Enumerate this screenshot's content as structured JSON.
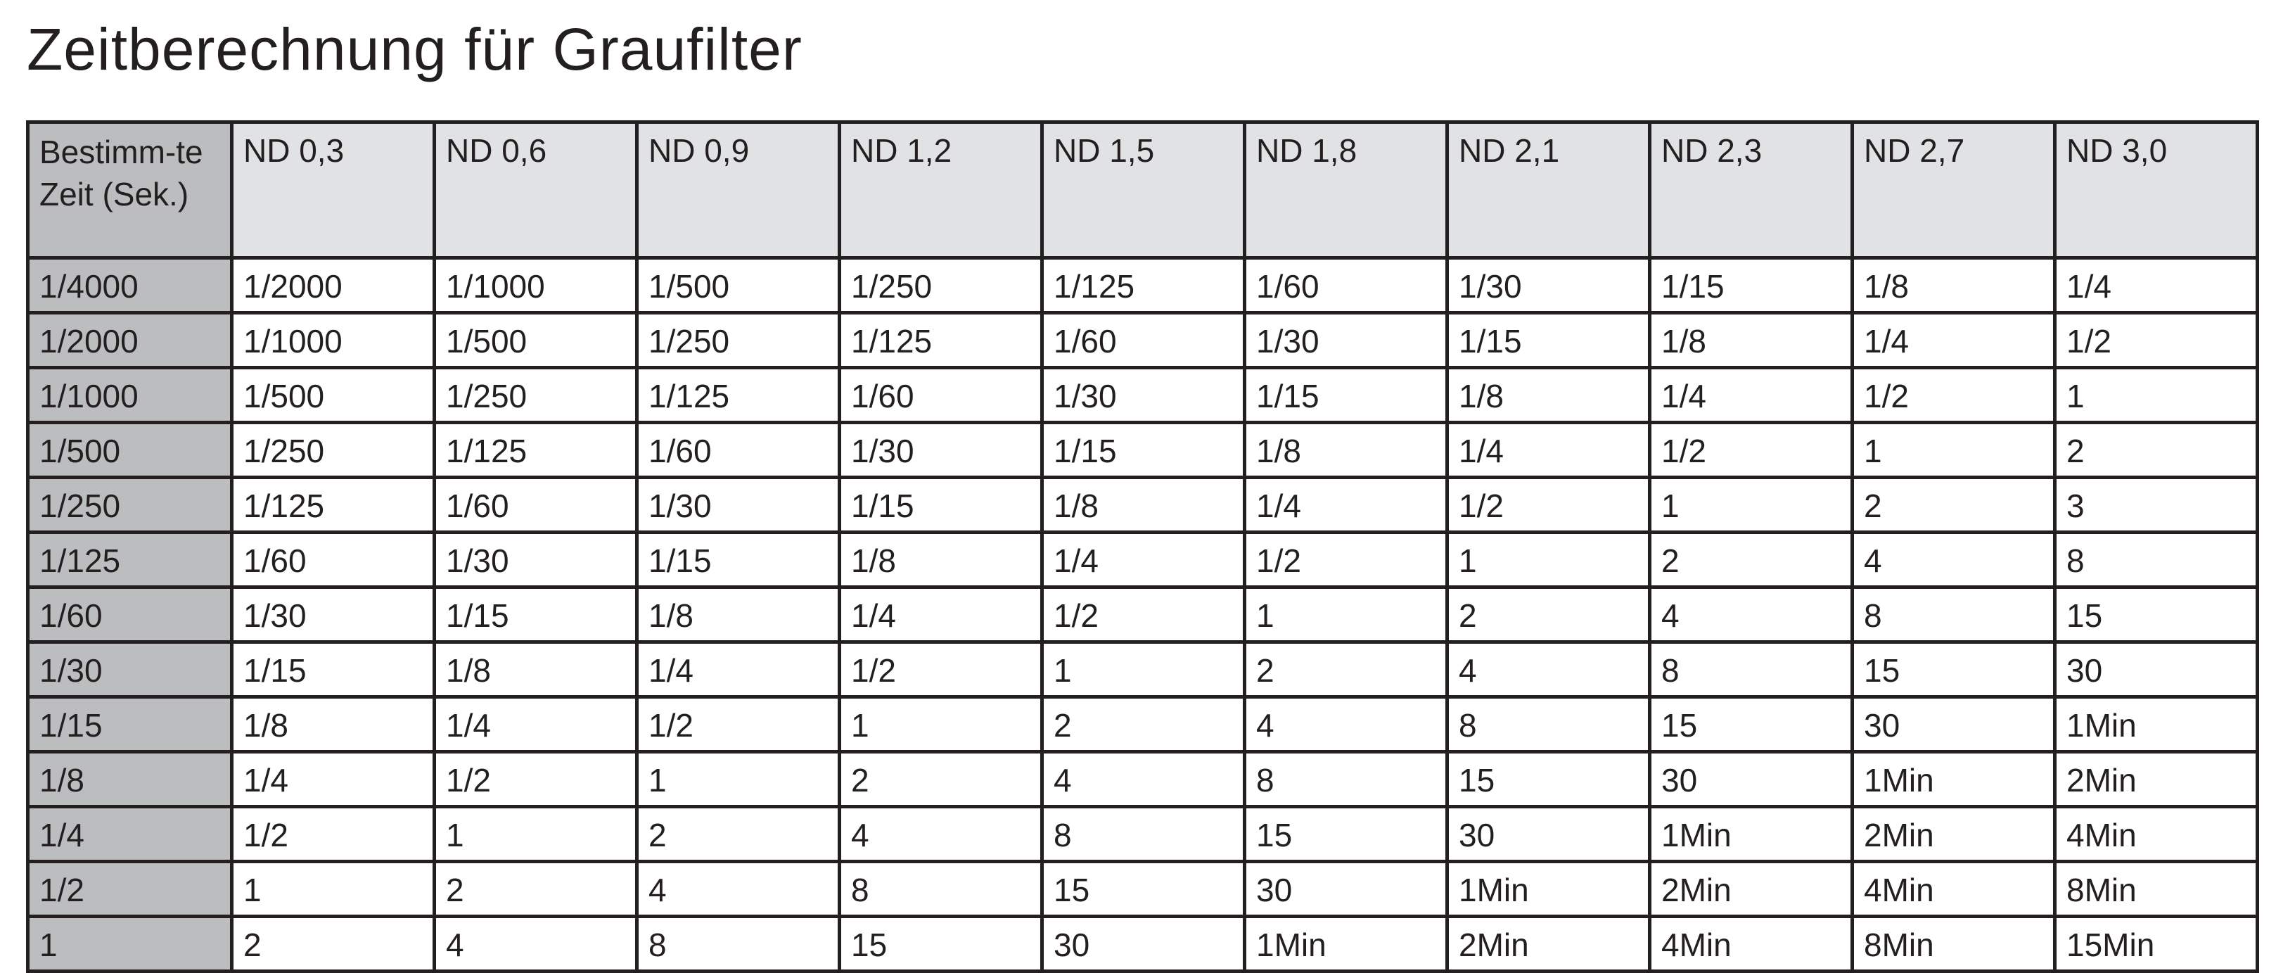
{
  "title": "Zeitberechnung für Graufilter",
  "table": {
    "corner_header": "Bestimm-te Zeit (Sek.)",
    "columns": [
      "ND 0,3",
      "ND 0,6",
      "ND 0,9",
      "ND 1,2",
      "ND 1,5",
      "ND 1,8",
      "ND 2,1",
      "ND 2,3",
      "ND 2,7",
      "ND 3,0"
    ],
    "rows": [
      {
        "time": "1/4000",
        "values": [
          "1/2000",
          "1/1000",
          "1/500",
          "1/250",
          "1/125",
          "1/60",
          "1/30",
          "1/15",
          "1/8",
          "1/4"
        ]
      },
      {
        "time": "1/2000",
        "values": [
          "1/1000",
          "1/500",
          "1/250",
          "1/125",
          "1/60",
          "1/30",
          "1/15",
          "1/8",
          "1/4",
          "1/2"
        ]
      },
      {
        "time": "1/1000",
        "values": [
          "1/500",
          "1/250",
          "1/125",
          "1/60",
          "1/30",
          "1/15",
          "1/8",
          "1/4",
          "1/2",
          "1"
        ]
      },
      {
        "time": "1/500",
        "values": [
          "1/250",
          "1/125",
          "1/60",
          "1/30",
          "1/15",
          "1/8",
          "1/4",
          "1/2",
          "1",
          "2"
        ]
      },
      {
        "time": "1/250",
        "values": [
          "1/125",
          "1/60",
          "1/30",
          "1/15",
          "1/8",
          "1/4",
          "1/2",
          "1",
          "2",
          "3"
        ]
      },
      {
        "time": "1/125",
        "values": [
          "1/60",
          "1/30",
          "1/15",
          "1/8",
          "1/4",
          "1/2",
          "1",
          "2",
          "4",
          "8"
        ]
      },
      {
        "time": "1/60",
        "values": [
          "1/30",
          "1/15",
          "1/8",
          "1/4",
          "1/2",
          "1",
          "2",
          "4",
          "8",
          "15"
        ]
      },
      {
        "time": "1/30",
        "values": [
          "1/15",
          "1/8",
          "1/4",
          "1/2",
          "1",
          "2",
          "4",
          "8",
          "15",
          "30"
        ]
      },
      {
        "time": "1/15",
        "values": [
          "1/8",
          "1/4",
          "1/2",
          "1",
          "2",
          "4",
          "8",
          "15",
          "30",
          "1Min"
        ]
      },
      {
        "time": "1/8",
        "values": [
          "1/4",
          "1/2",
          "1",
          "2",
          "4",
          "8",
          "15",
          "30",
          "1Min",
          "2Min"
        ]
      },
      {
        "time": "1/4",
        "values": [
          "1/2",
          "1",
          "2",
          "4",
          "8",
          "15",
          "30",
          "1Min",
          "2Min",
          "4Min"
        ]
      },
      {
        "time": "1/2",
        "values": [
          "1",
          "2",
          "4",
          "8",
          "15",
          "30",
          "1Min",
          "2Min",
          "4Min",
          "8Min"
        ]
      },
      {
        "time": "1",
        "values": [
          "2",
          "4",
          "8",
          "15",
          "30",
          "1Min",
          "2Min",
          "4Min",
          "8Min",
          "15Min"
        ]
      }
    ]
  },
  "colors": {
    "header_bg": "#e1e2e4",
    "row_header_bg": "#bcbdbf",
    "border": "#231f20",
    "text": "#231f20"
  }
}
